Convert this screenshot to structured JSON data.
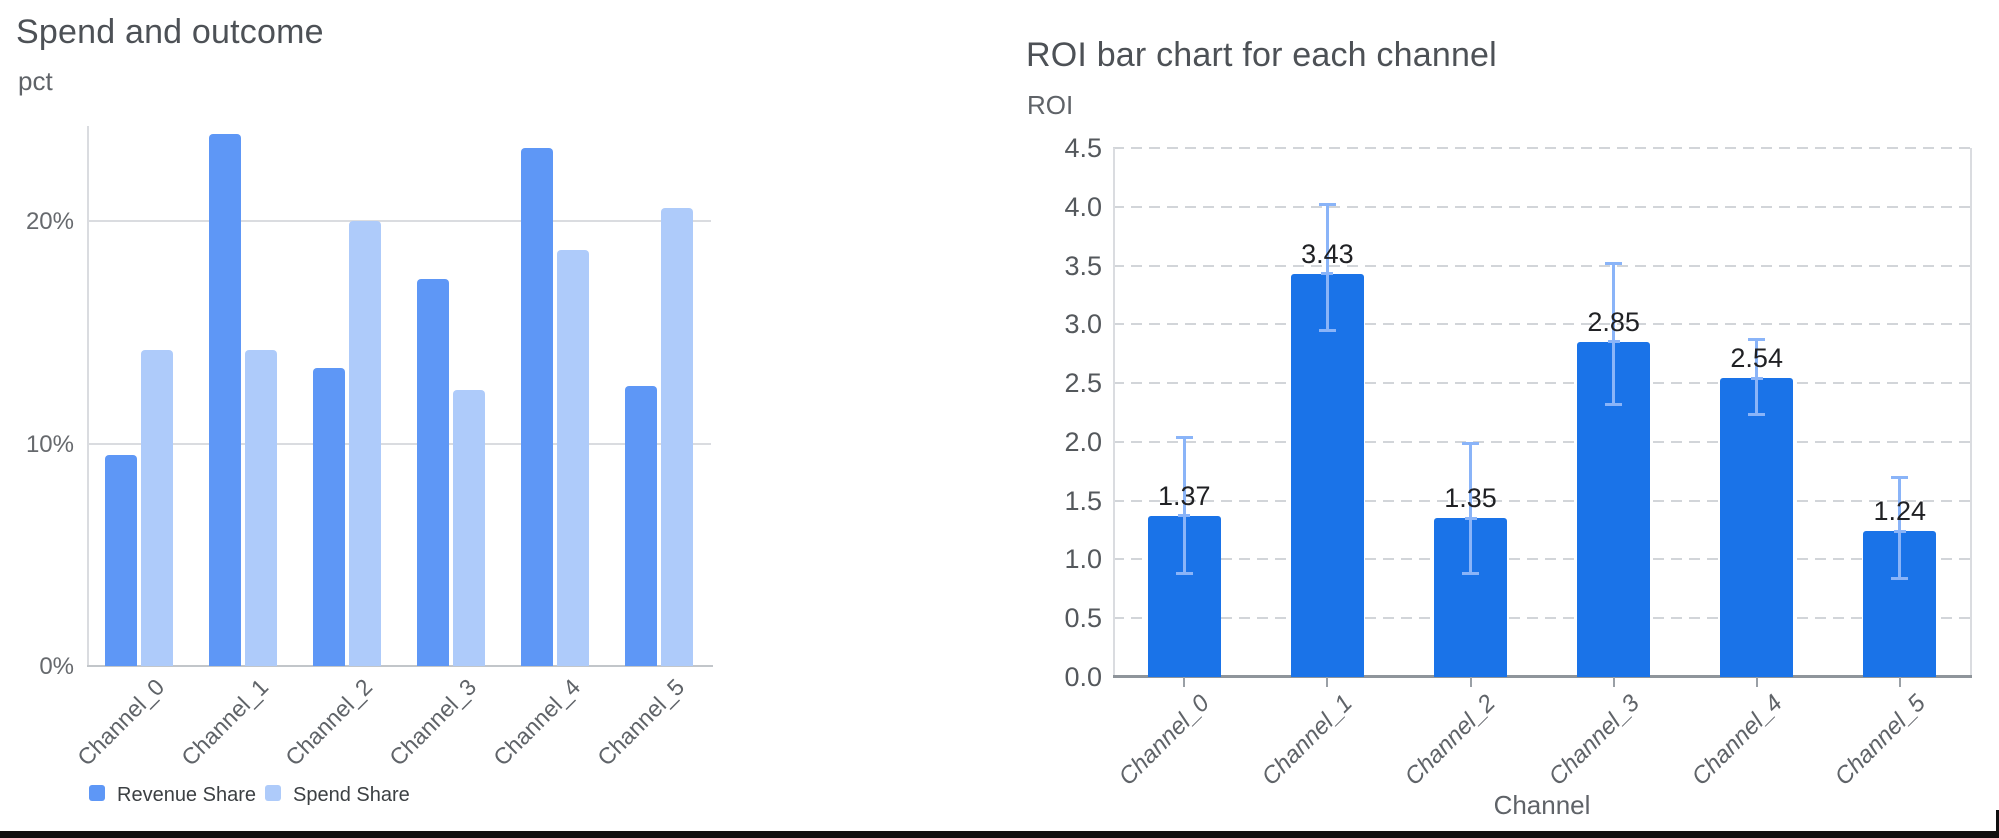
{
  "left_chart": {
    "title": "Spend and outcome",
    "y_axis_label": "pct",
    "y_tick_labels": [
      "0%",
      "10%",
      "20%"
    ],
    "legend": [
      {
        "label": "Revenue Share",
        "color": "#5e97f6"
      },
      {
        "label": "Spend Share",
        "color": "#aecbfa"
      }
    ]
  },
  "right_chart": {
    "title": "ROI bar chart for each channel",
    "y_axis_label": "ROI",
    "x_axis_label": "Channel",
    "y_tick_labels": [
      "0.0",
      "0.5",
      "1.0",
      "1.5",
      "2.0",
      "2.5",
      "3.0",
      "3.5",
      "4.0",
      "4.5"
    ],
    "bar_color": "#1a73e8",
    "error_bar_color": "#8ab4f8",
    "data_label_color": "#202124"
  },
  "chart_data": [
    {
      "type": "bar",
      "title": "Spend and outcome",
      "xlabel": "",
      "ylabel": "pct",
      "categories": [
        "Channel_0",
        "Channel_1",
        "Channel_2",
        "Channel_3",
        "Channel_4",
        "Channel_5"
      ],
      "series": [
        {
          "name": "Revenue Share",
          "color": "#5e97f6",
          "values": [
            9.5,
            23.9,
            13.4,
            17.4,
            23.3,
            12.6
          ]
        },
        {
          "name": "Spend Share",
          "color": "#aecbfa",
          "values": [
            14.2,
            14.2,
            20.0,
            12.4,
            18.7,
            20.6
          ]
        }
      ],
      "y_ticks": [
        0,
        10,
        20
      ],
      "y_tick_format": "percent",
      "ylim": [
        0,
        24.3
      ],
      "grid": "solid",
      "legend_position": "bottom"
    },
    {
      "type": "bar",
      "title": "ROI bar chart for each channel",
      "xlabel": "Channel",
      "ylabel": "ROI",
      "categories": [
        "Channel_0",
        "Channel_1",
        "Channel_2",
        "Channel_3",
        "Channel_4",
        "Channel_5"
      ],
      "values": [
        1.37,
        3.43,
        1.35,
        2.85,
        2.54,
        1.24
      ],
      "data_labels": [
        "1.37",
        "3.43",
        "1.35",
        "2.85",
        "2.54",
        "1.24"
      ],
      "error_low": [
        0.88,
        2.95,
        0.88,
        2.32,
        2.23,
        0.84
      ],
      "error_high": [
        2.04,
        4.02,
        1.99,
        3.52,
        2.87,
        1.7
      ],
      "y_ticks": [
        0.0,
        0.5,
        1.0,
        1.5,
        2.0,
        2.5,
        3.0,
        3.5,
        4.0,
        4.5
      ],
      "ylim": [
        0,
        4.5
      ],
      "grid": "dashed",
      "legend_position": "none"
    }
  ],
  "window": {
    "bottom_edge_color": "#0f0f0f"
  }
}
